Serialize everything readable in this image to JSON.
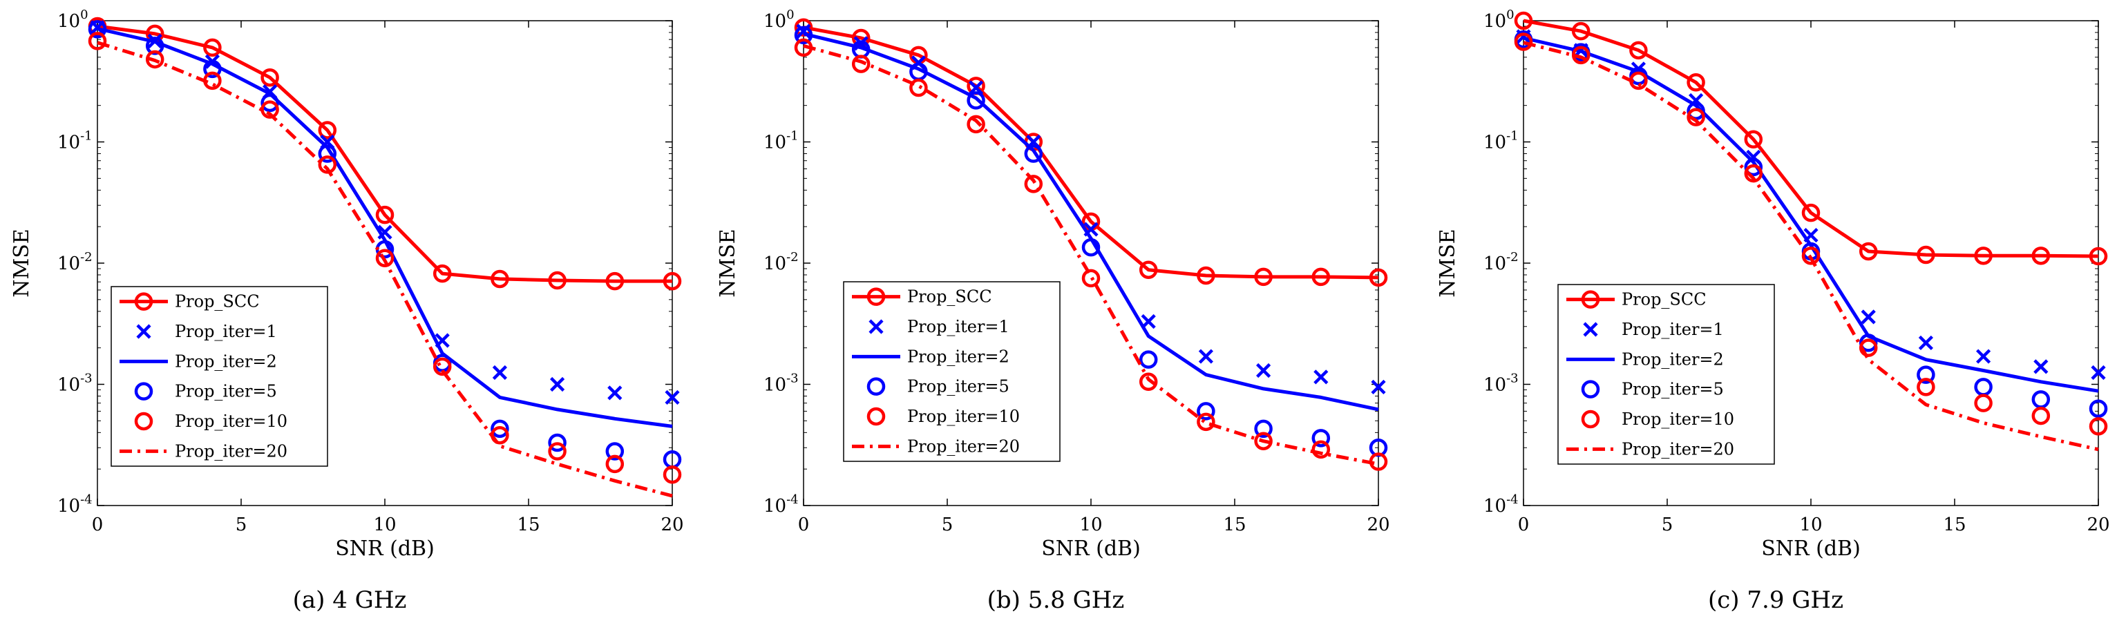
{
  "chart_data": [
    {
      "type": "line",
      "caption": "(a)  4 GHz",
      "xlabel": "SNR (dB)",
      "ylabel": "NMSE",
      "yscale": "log",
      "xlim": [
        0,
        20
      ],
      "ylim": [
        0.0001,
        1
      ],
      "xticks": [
        "0",
        "5",
        "10",
        "15",
        "20"
      ],
      "yticks": [
        {
          "base": "10",
          "exp": "0"
        },
        {
          "base": "10",
          "exp": "-1"
        },
        {
          "base": "10",
          "exp": "-2"
        },
        {
          "base": "10",
          "exp": "-3"
        },
        {
          "base": "10",
          "exp": "-4"
        }
      ],
      "legend": "lower-left",
      "x": [
        0,
        2,
        4,
        6,
        8,
        10,
        12,
        14,
        16,
        18,
        20
      ],
      "series": [
        {
          "name": "Prop_SCC",
          "style": "line-circle",
          "color": "#ff0000",
          "values": [
            0.9,
            0.78,
            0.6,
            0.34,
            0.125,
            0.025,
            0.0082,
            0.0074,
            0.0072,
            0.0071,
            0.0071
          ]
        },
        {
          "name": "Prop_iter=1",
          "style": "cross",
          "color": "#0000ff",
          "values": [
            0.88,
            0.68,
            0.46,
            0.26,
            0.1,
            0.018,
            0.0023,
            0.00125,
            0.001,
            0.00085,
            0.00078
          ]
        },
        {
          "name": "Prop_iter=2",
          "style": "line",
          "color": "#0000ff",
          "values": [
            0.86,
            0.67,
            0.44,
            0.25,
            0.09,
            0.0155,
            0.0018,
            0.00078,
            0.00062,
            0.00052,
            0.00045
          ]
        },
        {
          "name": "Prop_iter=5",
          "style": "circle",
          "color": "#0000ff",
          "values": [
            0.85,
            0.62,
            0.4,
            0.21,
            0.08,
            0.013,
            0.0015,
            0.00043,
            0.00033,
            0.00028,
            0.00024
          ]
        },
        {
          "name": "Prop_iter=10",
          "style": "circle",
          "color": "#ff0000",
          "values": [
            0.68,
            0.48,
            0.32,
            0.185,
            0.065,
            0.011,
            0.0014,
            0.00038,
            0.00028,
            0.00022,
            0.00018
          ]
        },
        {
          "name": "Prop_iter=20",
          "style": "dashdot",
          "color": "#ff0000",
          "values": [
            0.66,
            0.47,
            0.3,
            0.17,
            0.06,
            0.0105,
            0.0013,
            0.00031,
            0.00022,
            0.00016,
            0.00012
          ]
        }
      ]
    },
    {
      "type": "line",
      "caption": "(b)  5.8 GHz",
      "xlabel": "SNR (dB)",
      "ylabel": "NMSE",
      "yscale": "log",
      "xlim": [
        0,
        20
      ],
      "ylim": [
        0.0001,
        1
      ],
      "xticks": [
        "0",
        "5",
        "10",
        "15",
        "20"
      ],
      "yticks": [
        {
          "base": "10",
          "exp": "0"
        },
        {
          "base": "10",
          "exp": "-1"
        },
        {
          "base": "10",
          "exp": "-2"
        },
        {
          "base": "10",
          "exp": "-3"
        },
        {
          "base": "10",
          "exp": "-4"
        }
      ],
      "legend": "lower-left",
      "x": [
        0,
        2,
        4,
        6,
        8,
        10,
        12,
        14,
        16,
        18,
        20
      ],
      "series": [
        {
          "name": "Prop_SCC",
          "style": "line-circle",
          "color": "#ff0000",
          "values": [
            0.88,
            0.72,
            0.52,
            0.29,
            0.1,
            0.022,
            0.0088,
            0.0079,
            0.0077,
            0.0077,
            0.0076
          ]
        },
        {
          "name": "Prop_iter=1",
          "style": "cross",
          "color": "#0000ff",
          "values": [
            0.82,
            0.65,
            0.45,
            0.28,
            0.1,
            0.019,
            0.0033,
            0.0017,
            0.0013,
            0.00115,
            0.00095
          ]
        },
        {
          "name": "Prop_iter=2",
          "style": "line",
          "color": "#0000ff",
          "values": [
            0.78,
            0.6,
            0.4,
            0.23,
            0.085,
            0.016,
            0.0025,
            0.0012,
            0.00092,
            0.00078,
            0.00062
          ]
        },
        {
          "name": "Prop_iter=5",
          "style": "circle",
          "color": "#0000ff",
          "values": [
            0.76,
            0.58,
            0.38,
            0.22,
            0.08,
            0.0135,
            0.0016,
            0.0006,
            0.00043,
            0.00036,
            0.0003
          ]
        },
        {
          "name": "Prop_iter=10",
          "style": "circle",
          "color": "#ff0000",
          "values": [
            0.6,
            0.44,
            0.28,
            0.14,
            0.045,
            0.0075,
            0.00105,
            0.00049,
            0.00034,
            0.00029,
            0.00023
          ]
        },
        {
          "name": "Prop_iter=20",
          "style": "dashdot",
          "color": "#ff0000",
          "values": [
            0.62,
            0.46,
            0.29,
            0.15,
            0.048,
            0.0078,
            0.0011,
            0.00048,
            0.00034,
            0.00027,
            0.00022
          ]
        }
      ]
    },
    {
      "type": "line",
      "caption": "(c)  7.9 GHz",
      "xlabel": "SNR (dB)",
      "ylabel": "NMSE",
      "yscale": "log",
      "xlim": [
        0,
        20
      ],
      "ylim": [
        0.0001,
        1
      ],
      "xticks": [
        "0",
        "5",
        "10",
        "15",
        "20"
      ],
      "yticks": [
        {
          "base": "10",
          "exp": "0"
        },
        {
          "base": "10",
          "exp": "-1"
        },
        {
          "base": "10",
          "exp": "-2"
        },
        {
          "base": "10",
          "exp": "-3"
        },
        {
          "base": "10",
          "exp": "-4"
        }
      ],
      "legend": "lower-left",
      "x": [
        0,
        2,
        4,
        6,
        8,
        10,
        12,
        14,
        16,
        18,
        20
      ],
      "series": [
        {
          "name": "Prop_SCC",
          "style": "line-circle",
          "color": "#ff0000",
          "values": [
            1.0,
            0.82,
            0.57,
            0.31,
            0.105,
            0.026,
            0.0125,
            0.0117,
            0.0115,
            0.0115,
            0.0114
          ]
        },
        {
          "name": "Prop_iter=1",
          "style": "cross",
          "color": "#0000ff",
          "values": [
            0.74,
            0.57,
            0.4,
            0.22,
            0.075,
            0.017,
            0.0036,
            0.0022,
            0.0017,
            0.0014,
            0.00125
          ]
        },
        {
          "name": "Prop_iter=2",
          "style": "line",
          "color": "#0000ff",
          "values": [
            0.72,
            0.56,
            0.38,
            0.2,
            0.068,
            0.014,
            0.0025,
            0.0016,
            0.0013,
            0.00105,
            0.00088
          ]
        },
        {
          "name": "Prop_iter=5",
          "style": "circle",
          "color": "#0000ff",
          "values": [
            0.7,
            0.55,
            0.35,
            0.18,
            0.062,
            0.0125,
            0.0022,
            0.0012,
            0.00095,
            0.00075,
            0.00063
          ]
        },
        {
          "name": "Prop_iter=10",
          "style": "circle",
          "color": "#ff0000",
          "values": [
            0.67,
            0.52,
            0.32,
            0.16,
            0.055,
            0.0115,
            0.002,
            0.00095,
            0.0007,
            0.00055,
            0.00045
          ]
        },
        {
          "name": "Prop_iter=20",
          "style": "dashdot",
          "color": "#ff0000",
          "values": [
            0.66,
            0.5,
            0.3,
            0.15,
            0.05,
            0.011,
            0.0016,
            0.00068,
            0.00048,
            0.00037,
            0.00029
          ]
        }
      ]
    }
  ]
}
